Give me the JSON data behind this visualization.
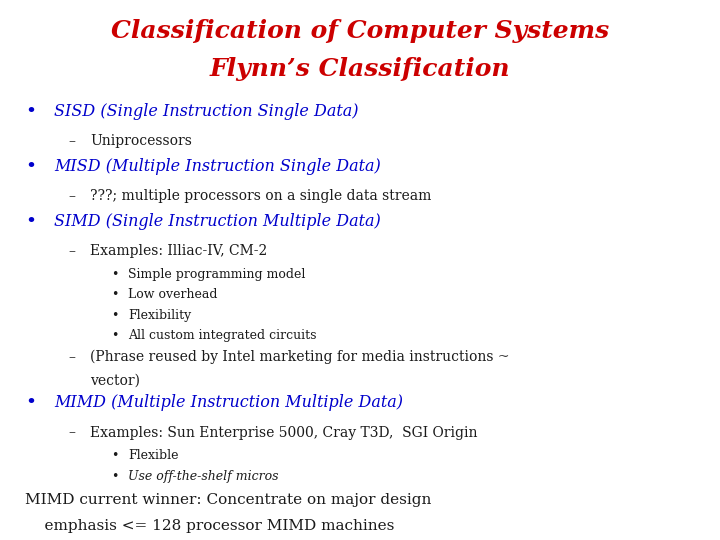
{
  "background_color": "#ffffff",
  "title_line1": "Classification of Computer Systems",
  "title_line2": "Flynn’s Classification",
  "title_color": "#cc0000",
  "title_fontsize": 18,
  "body_color": "#1a1a1a",
  "bullet_color": "#0000cc",
  "bullet_fontsize": 11.5,
  "sub_fontsize": 10,
  "subsub_fontsize": 9,
  "footer_fontsize": 11,
  "content": [
    {
      "type": "bullet",
      "text": "SISD (Single Instruction Single Data)",
      "subs": [
        {
          "type": "dash",
          "text": "Uniprocessors"
        }
      ]
    },
    {
      "type": "bullet",
      "text": "MISD (Multiple Instruction Single Data)",
      "subs": [
        {
          "type": "dash",
          "text": "???; multiple processors on a single data stream"
        }
      ]
    },
    {
      "type": "bullet",
      "text": "SIMD (Single Instruction Multiple Data)",
      "subs": [
        {
          "type": "dash",
          "text": "Examples: Illiac-IV, CM-2"
        },
        {
          "type": "subdot",
          "text": "Simple programming model"
        },
        {
          "type": "subdot",
          "text": "Low overhead"
        },
        {
          "type": "subdot",
          "text": "Flexibility"
        },
        {
          "type": "subdot",
          "text": "All custom integrated circuits"
        },
        {
          "type": "dash",
          "text": "(Phrase reused by Intel marketing for media instructions ~"
        },
        {
          "type": "dash_cont",
          "text": "vector)"
        }
      ]
    },
    {
      "type": "bullet",
      "text": "MIMD (Multiple Instruction Multiple Data)",
      "subs": [
        {
          "type": "dash",
          "text": "Examples: Sun Enterprise 5000, Cray T3D,  SGI Origin"
        },
        {
          "type": "subdot",
          "text": "Flexible"
        },
        {
          "type": "subdot_italic",
          "text": "Use off-the-shelf micros"
        }
      ]
    }
  ],
  "footer_line1": "MIMD current winner: Concentrate on major design",
  "footer_line2": "    emphasis <= 128 processor MIMD machines"
}
